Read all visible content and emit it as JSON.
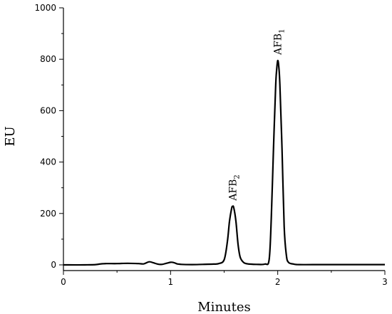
{
  "chart_data": {
    "type": "line",
    "xlabel": "Minutes",
    "ylabel": "EU",
    "xlim": [
      0,
      3
    ],
    "ylim": [
      0,
      1000
    ],
    "x_ticks": [
      0,
      1,
      2,
      3
    ],
    "y_ticks": [
      0,
      200,
      400,
      600,
      800,
      1000
    ],
    "grid": false,
    "series": [
      {
        "x": [
          0.0,
          0.2,
          0.3,
          0.35,
          0.4,
          0.5,
          0.6,
          0.7,
          0.75,
          0.8,
          0.84,
          0.88,
          0.92,
          0.96,
          1.0,
          1.03,
          1.06,
          1.1,
          1.2,
          1.3,
          1.4,
          1.45,
          1.5,
          1.53,
          1.55,
          1.57,
          1.58,
          1.59,
          1.61,
          1.63,
          1.65,
          1.68,
          1.72,
          1.8,
          1.88,
          1.92,
          1.94,
          1.96,
          1.98,
          1.99,
          2.0,
          2.01,
          2.02,
          2.04,
          2.06,
          2.08,
          2.1,
          2.15,
          2.2,
          2.4,
          2.6,
          3.0
        ],
        "y": [
          0,
          0,
          1,
          4,
          5,
          5,
          6,
          5,
          4,
          12,
          8,
          3,
          2,
          6,
          10,
          9,
          4,
          2,
          1,
          2,
          3,
          5,
          20,
          90,
          170,
          220,
          228,
          222,
          170,
          80,
          30,
          10,
          4,
          2,
          3,
          20,
          180,
          450,
          690,
          760,
          795,
          770,
          700,
          450,
          150,
          40,
          10,
          3,
          1,
          1,
          1,
          1
        ]
      }
    ],
    "annotations": [
      {
        "label_main": "AFB",
        "label_sub": "2",
        "x": 1.58,
        "y": 228
      },
      {
        "label_main": "AFB",
        "label_sub": "1",
        "x": 2.0,
        "y": 795
      }
    ]
  }
}
